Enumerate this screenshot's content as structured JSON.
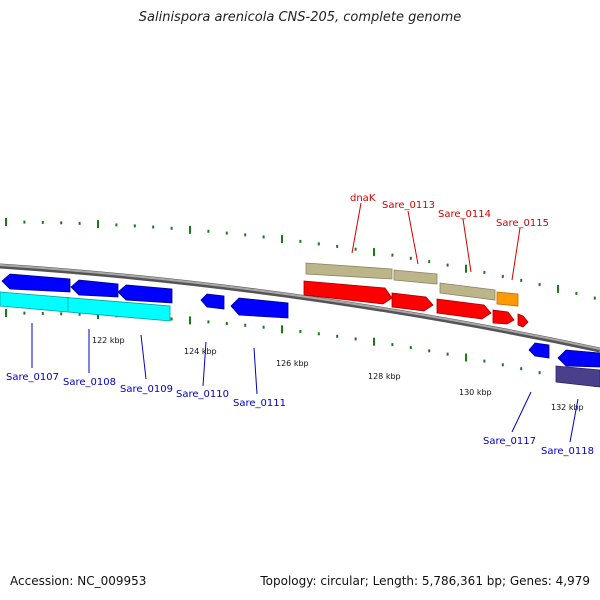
{
  "title": "Salinispora arenicola CNS-205, complete genome",
  "footer": {
    "accession": "Accession: NC_009953",
    "summary": "Topology: circular; Length: 5,786,361 bp; Genes: 4,979"
  },
  "scale_labels": [
    "122 kbp",
    "124 kbp",
    "126 kbp",
    "128 kbp",
    "130 kbp",
    "132 kbp"
  ],
  "gene_labels": {
    "forward": [
      "dnaK",
      "Sare_0113",
      "Sare_0114",
      "Sare_0115"
    ],
    "reverse": [
      "Sare_0107",
      "Sare_0108",
      "Sare_0109",
      "Sare_0110",
      "Sare_0111",
      "Sare_0117",
      "Sare_0118"
    ]
  },
  "colors": {
    "forward_label": "#d40000",
    "reverse_label": "#0000c8",
    "cds_reverse": "#0000ff",
    "cds_forward": "#ff0000",
    "gene_forward": "#bdb58a",
    "gene_highlight": "#ff9900",
    "feature_cyan": "#00ffff",
    "feature_purple": "#4a3f8a",
    "backbone": "#7f7f7f",
    "tick": "#1a7a1a"
  }
}
